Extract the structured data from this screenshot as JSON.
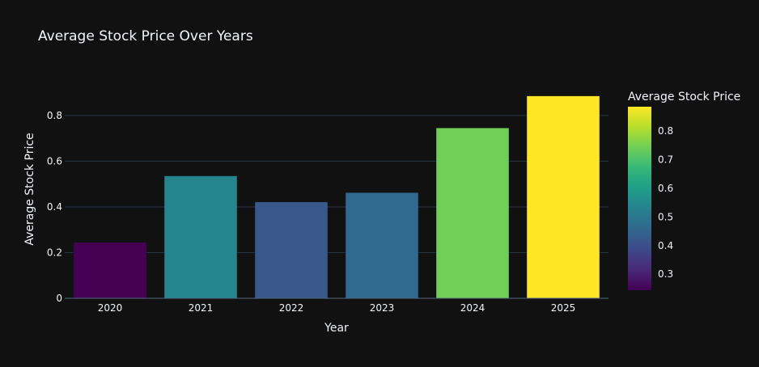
{
  "chart_data": {
    "type": "bar",
    "title": "Average Stock Price Over Years",
    "xlabel": "Year",
    "ylabel": "Average Stock Price",
    "categories": [
      "2020",
      "2021",
      "2022",
      "2023",
      "2024",
      "2025"
    ],
    "values": [
      0.244,
      0.535,
      0.421,
      0.462,
      0.745,
      0.885
    ],
    "ylim": [
      0,
      0.92
    ],
    "yticks": [
      0,
      0.2,
      0.4,
      0.6,
      0.8
    ],
    "ytick_labels": [
      "0",
      "0.2",
      "0.4",
      "0.6",
      "0.8"
    ],
    "grid": true,
    "colorscale": "Viridis",
    "colorbar": {
      "title": "Average Stock Price",
      "range": [
        0.244,
        0.885
      ],
      "ticks": [
        0.3,
        0.4,
        0.5,
        0.6,
        0.7,
        0.8
      ],
      "tick_labels": [
        "0.3",
        "0.4",
        "0.5",
        "0.6",
        "0.7",
        "0.8"
      ]
    }
  },
  "colors": {
    "background": "#111111",
    "grid": "#283442",
    "text": "#f2f5fa"
  }
}
